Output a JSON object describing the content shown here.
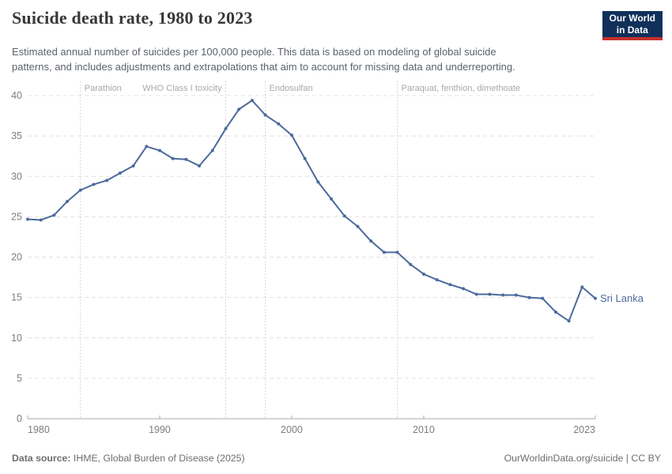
{
  "header": {
    "title": "Suicide death rate, 1980 to 2023",
    "subtitle_lines": [
      "Estimated annual number of suicides per 100,000 people. This data is based on modeling of global suicide",
      "patterns, and includes adjustments and extrapolations that aim to account for missing data and underreporting."
    ],
    "logo": {
      "line1": "Our World",
      "line2": "in Data",
      "bg_color": "#10305a",
      "bar_color": "#c5302c"
    }
  },
  "footer": {
    "source_label": "Data source:",
    "source_text": " IHME, Global Burden of Disease (2025)",
    "link_text": "OurWorldinData.org/suicide | CC BY"
  },
  "chart_data": {
    "type": "line",
    "title": "Suicide death rate, 1980 to 2023",
    "xlabel": "",
    "ylabel": "",
    "ylim": [
      0,
      40
    ],
    "yticks": [
      0,
      5,
      10,
      15,
      20,
      25,
      30,
      35,
      40
    ],
    "xlim": [
      1980,
      2023
    ],
    "xticks": [
      {
        "year": 1980,
        "anchor": "start"
      },
      {
        "year": 1990,
        "anchor": "middle"
      },
      {
        "year": 2000,
        "anchor": "middle"
      },
      {
        "year": 2010,
        "anchor": "middle"
      },
      {
        "year": 2023,
        "anchor": "end"
      }
    ],
    "grid": true,
    "legend_position": "end-of-line",
    "line_color": "#4c6a9c",
    "colors": {
      "grid": "#e0e0e0",
      "axis": "#a9a9a9",
      "tick_label": "#7d7d7d",
      "event_line": "#cfcfcf",
      "event_label": "#a8a8a8"
    },
    "series": [
      {
        "name": "Sri Lanka",
        "x": [
          1980,
          1981,
          1982,
          1983,
          1984,
          1985,
          1986,
          1987,
          1988,
          1989,
          1990,
          1991,
          1992,
          1993,
          1994,
          1995,
          1996,
          1997,
          1998,
          1999,
          2000,
          2001,
          2002,
          2003,
          2004,
          2005,
          2006,
          2007,
          2008,
          2009,
          2010,
          2011,
          2012,
          2013,
          2014,
          2015,
          2016,
          2017,
          2018,
          2019,
          2020,
          2021,
          2022,
          2023
        ],
        "values": [
          24.7,
          24.6,
          25.2,
          26.9,
          28.3,
          29.0,
          29.5,
          30.4,
          31.3,
          33.7,
          33.2,
          32.2,
          32.1,
          31.3,
          33.2,
          35.9,
          38.3,
          39.4,
          37.6,
          36.5,
          35.1,
          32.2,
          29.3,
          27.2,
          25.1,
          23.8,
          22.0,
          20.6,
          20.6,
          19.1,
          17.9,
          17.2,
          16.6,
          16.1,
          15.4,
          15.4,
          15.3,
          15.3,
          15.0,
          14.9,
          13.2,
          12.1,
          16.3,
          14.9
        ]
      }
    ],
    "annotations": [
      {
        "year": 1984,
        "label": "Parathion",
        "align": "start"
      },
      {
        "year": 1995,
        "label": "WHO Class I toxicity",
        "align": "end"
      },
      {
        "year": 1998,
        "label": "Endosulfan",
        "align": "start"
      },
      {
        "year": 2008,
        "label": "Paraquat, fenthion, dimethoate",
        "align": "start"
      }
    ]
  }
}
